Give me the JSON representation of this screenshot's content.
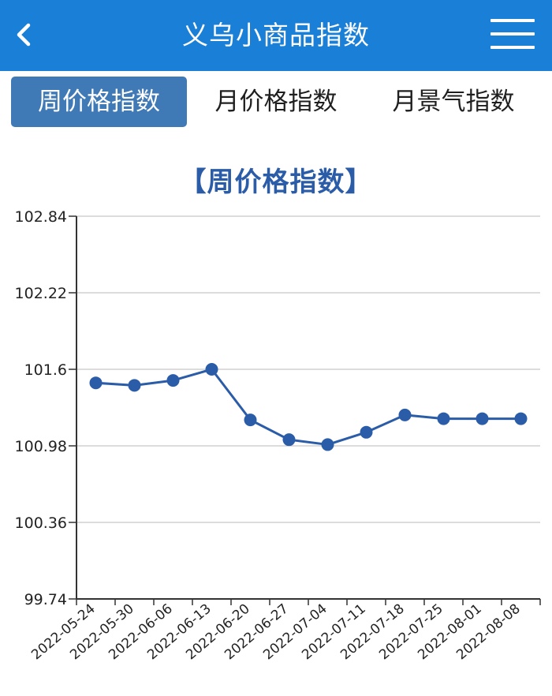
{
  "header": {
    "title": "义乌小商品指数",
    "back_icon": "chevron-left-icon",
    "menu_icon": "hamburger-menu-icon",
    "background": "#1a7fd6"
  },
  "tabs": [
    {
      "label": "周价格指数",
      "active": true
    },
    {
      "label": "月价格指数",
      "active": false
    },
    {
      "label": "月景气指数",
      "active": false
    }
  ],
  "chart_title": "【周价格指数】",
  "chart_data": {
    "type": "line",
    "title": "【周价格指数】",
    "xlabel": "",
    "ylabel": "",
    "x_tick_labels": [
      "2022-05-24",
      "2022-05-30",
      "2022-06-06",
      "2022-06-13",
      "2022-06-20",
      "2022-06-27",
      "2022-07-04",
      "2022-07-11",
      "2022-07-18",
      "2022-07-25",
      "2022-08-01",
      "2022-08-08"
    ],
    "y_tick_labels": [
      "102.84",
      "102.22",
      "101.6",
      "100.98",
      "100.36",
      "99.74"
    ],
    "ylim": [
      99.74,
      102.84
    ],
    "grid": true,
    "legend": "none",
    "series": [
      {
        "color": "#2b5ca8",
        "values": [
          101.49,
          101.47,
          101.51,
          101.6,
          101.19,
          101.03,
          100.99,
          101.09,
          101.23,
          101.2,
          101.2,
          101.2
        ]
      }
    ]
  }
}
